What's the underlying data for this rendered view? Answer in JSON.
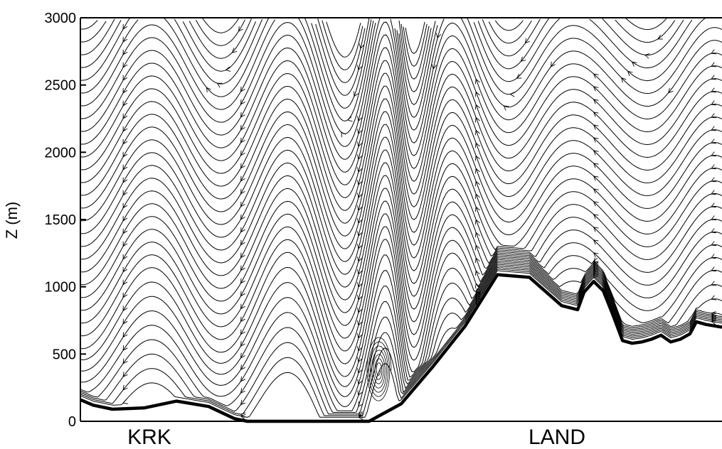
{
  "chart_data": {
    "type": "line",
    "title": "",
    "ylabel": "Z (m)",
    "xlabel": "",
    "ylim": [
      0,
      3000
    ],
    "y_ticks": [
      0,
      500,
      1000,
      1500,
      2000,
      2500,
      3000
    ],
    "y_tick_labels": [
      "0",
      "500",
      "1000",
      "1500",
      "2000",
      "2500",
      "3000"
    ],
    "grid": false,
    "legend": "none",
    "region_labels": [
      "KRK",
      "LAND"
    ],
    "colors": {
      "lines": "#000000",
      "background": "#ffffff"
    },
    "terrain": {
      "x": [
        0,
        0.02,
        0.05,
        0.1,
        0.15,
        0.2,
        0.24,
        0.26,
        0.29,
        0.32,
        0.35,
        0.38,
        0.4,
        0.45,
        0.5,
        0.55,
        0.6,
        0.65,
        0.7,
        0.75,
        0.775,
        0.785,
        0.8,
        0.815,
        0.83,
        0.845,
        0.86,
        0.875,
        0.89,
        0.905,
        0.92,
        0.935,
        0.95,
        0.96,
        0.975,
        1.0
      ],
      "z": [
        160,
        120,
        90,
        100,
        150,
        110,
        20,
        0,
        0,
        0,
        0,
        0,
        0,
        0,
        130,
        410,
        710,
        1090,
        1070,
        860,
        830,
        960,
        1040,
        970,
        790,
        600,
        580,
        590,
        610,
        640,
        590,
        610,
        650,
        740,
        720,
        700
      ]
    },
    "streamline_flow": "right-to-left",
    "recirculation_eddy": {
      "x": 0.465,
      "z": 380
    }
  }
}
